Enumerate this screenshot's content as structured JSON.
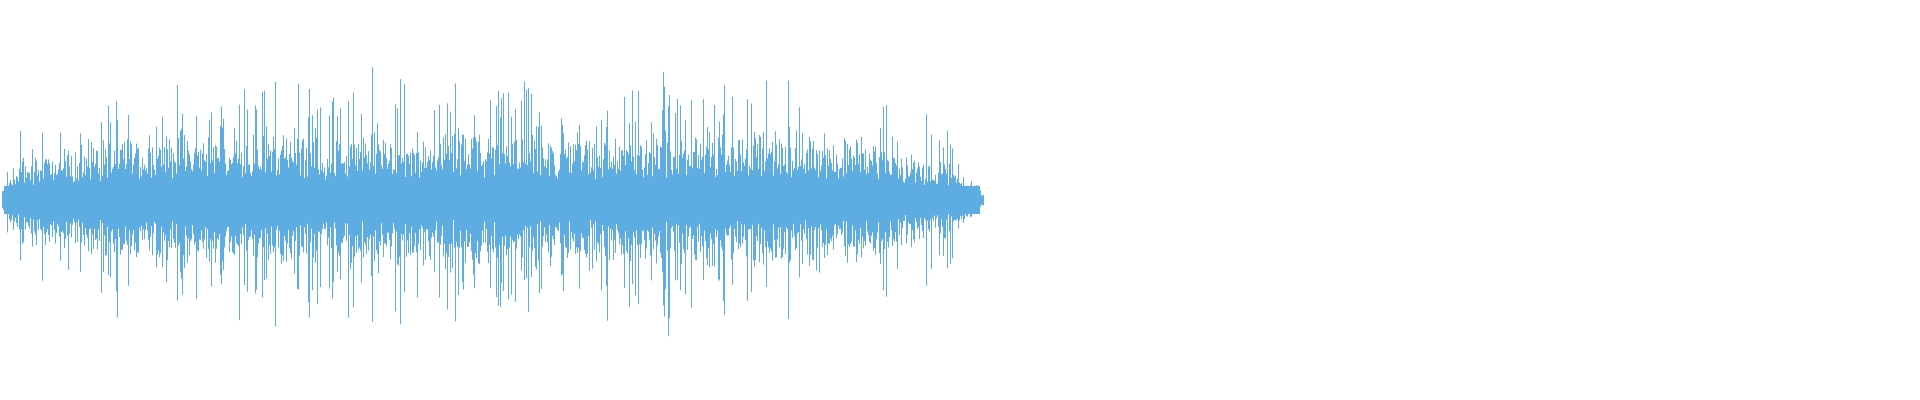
{
  "chart_data": {
    "type": "area",
    "title": "",
    "xlabel": "",
    "ylabel": "",
    "ylim": [
      -1,
      1
    ],
    "grid": false,
    "color": "#5dade2",
    "background": "#ffffff",
    "duration_fraction_filled": 0.51,
    "envelope": {
      "x": [
        0,
        0.02,
        0.06,
        0.1,
        0.2,
        0.3,
        0.4,
        0.5,
        0.6,
        0.7,
        0.8,
        0.88,
        0.92,
        0.96,
        1.0
      ],
      "peak": [
        0.05,
        0.3,
        0.35,
        0.45,
        0.5,
        0.5,
        0.5,
        0.48,
        0.48,
        0.5,
        0.5,
        0.45,
        0.35,
        0.3,
        0.05
      ]
    }
  }
}
